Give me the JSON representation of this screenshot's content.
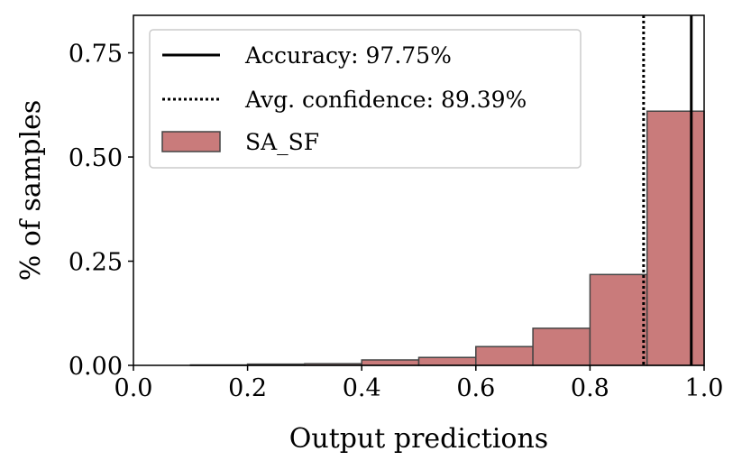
{
  "chart_data": {
    "type": "bar",
    "title": "",
    "xlabel": "Output predictions",
    "ylabel": "% of samples",
    "xlim": [
      0.0,
      1.0
    ],
    "ylim": [
      0.0,
      0.84
    ],
    "xticks": [
      "0.0",
      "0.2",
      "0.4",
      "0.6",
      "0.8",
      "1.0"
    ],
    "yticks": [
      "0.00",
      "0.25",
      "0.50",
      "0.75"
    ],
    "bins": [
      {
        "start": 0.1,
        "end": 0.2,
        "value": 0.001
      },
      {
        "start": 0.2,
        "end": 0.3,
        "value": 0.003
      },
      {
        "start": 0.3,
        "end": 0.4,
        "value": 0.004
      },
      {
        "start": 0.4,
        "end": 0.5,
        "value": 0.013
      },
      {
        "start": 0.5,
        "end": 0.6,
        "value": 0.019
      },
      {
        "start": 0.6,
        "end": 0.7,
        "value": 0.045
      },
      {
        "start": 0.7,
        "end": 0.8,
        "value": 0.089
      },
      {
        "start": 0.8,
        "end": 0.9,
        "value": 0.218
      },
      {
        "start": 0.9,
        "end": 1.0,
        "value": 0.61
      }
    ],
    "series": [
      {
        "name": "SA_SF",
        "color": "#c97b7b"
      }
    ],
    "reference_lines": [
      {
        "label": "Accuracy: 97.75%",
        "x": 0.9775,
        "style": "solid"
      },
      {
        "label": "Avg. confidence: 89.39%",
        "x": 0.8939,
        "style": "dotted"
      }
    ],
    "legend_position": "top-left",
    "grid": false
  }
}
